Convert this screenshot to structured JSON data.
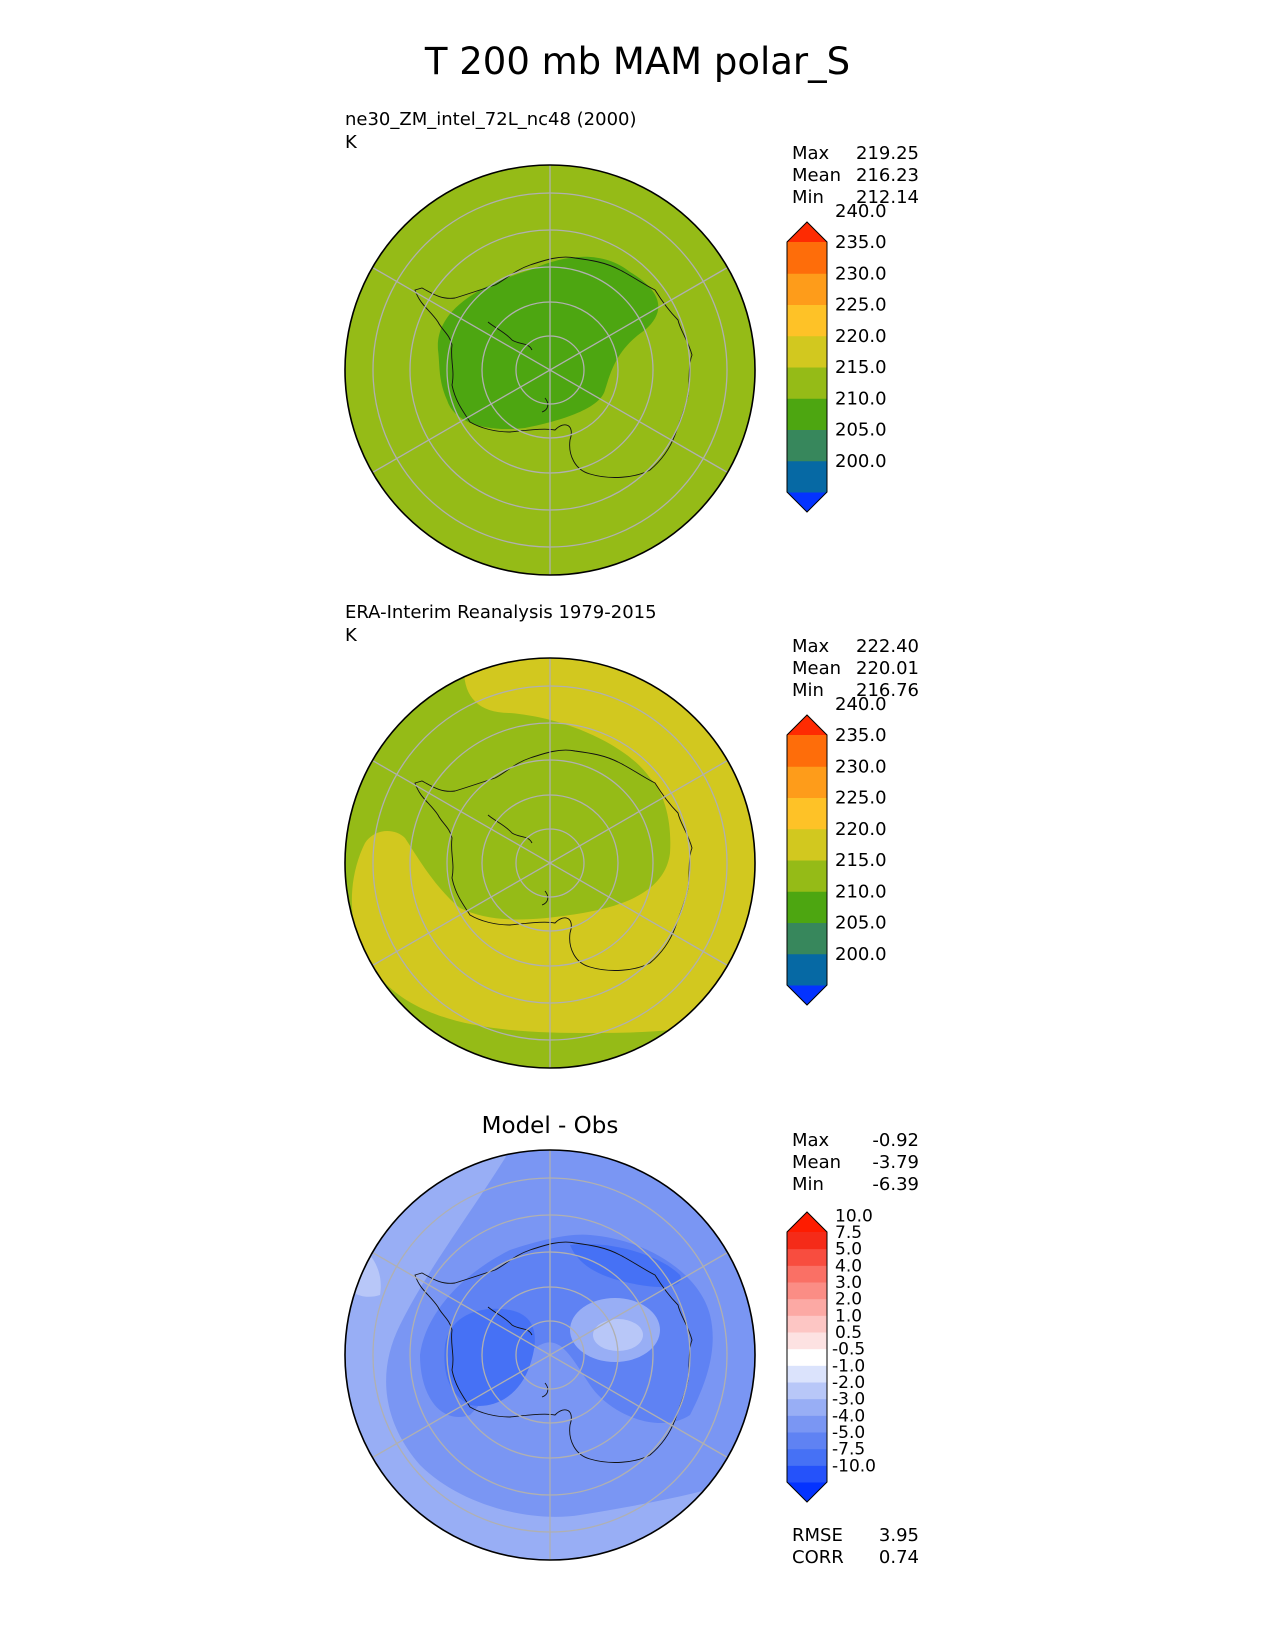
{
  "title": "T 200 mb MAM polar_S",
  "panels": [
    {
      "id": "model",
      "title_line1": "ne30_ZM_intel_72L_nc48 (2000)",
      "title_line2": "K",
      "stats": {
        "max_label": "Max",
        "max": "219.25",
        "mean_label": "Mean",
        "mean": "216.23",
        "min_label": "Min",
        "min": "212.14"
      },
      "colorbar": {
        "levels": [
          "200.0",
          "205.0",
          "210.0",
          "215.0",
          "220.0",
          "225.0",
          "230.0",
          "235.0",
          "240.0"
        ],
        "colors": [
          "#0433ff",
          "#0669a4",
          "#37875c",
          "#4da611",
          "#95bb17",
          "#d2c81f",
          "#fec227",
          "#fe9c1a",
          "#fe6d0a",
          "#fe2b02"
        ]
      }
    },
    {
      "id": "obs",
      "title_line1": "ERA-Interim Reanalysis 1979-2015",
      "title_line2": "K",
      "stats": {
        "max_label": "Max",
        "max": "222.40",
        "mean_label": "Mean",
        "mean": "220.01",
        "min_label": "Min",
        "min": "216.76"
      },
      "colorbar": {
        "levels": [
          "200.0",
          "205.0",
          "210.0",
          "215.0",
          "220.0",
          "225.0",
          "230.0",
          "235.0",
          "240.0"
        ],
        "colors": [
          "#0433ff",
          "#0669a4",
          "#37875c",
          "#4da611",
          "#95bb17",
          "#d2c81f",
          "#fec227",
          "#fe9c1a",
          "#fe6d0a",
          "#fe2b02"
        ]
      }
    },
    {
      "id": "diff",
      "title": "Model - Obs",
      "stats": {
        "max_label": "Max",
        "max": "-0.92",
        "mean_label": "Mean",
        "mean": "-3.79",
        "min_label": "Min",
        "min": "-6.39"
      },
      "colorbar": {
        "levels": [
          "-10.0",
          "-7.5",
          "-5.0",
          "-4.0",
          "-3.0",
          "-2.0",
          "-1.0",
          "-0.5",
          "0.5",
          "1.0",
          "2.0",
          "3.0",
          "4.0",
          "5.0",
          "7.5",
          "10.0"
        ],
        "colors": [
          "#0433ff",
          "#2552fa",
          "#4671f5",
          "#5f82f3",
          "#7a96f3",
          "#98aef5",
          "#b8c7f8",
          "#dbe3fc",
          "#ffffff",
          "#fde2e2",
          "#fdc6c4",
          "#fca9a4",
          "#fb8d85",
          "#fa7065",
          "#f84d3f",
          "#f52b18",
          "#fe1c00"
        ]
      },
      "rmse_label": "RMSE",
      "rmse": "3.95",
      "corr_label": "CORR",
      "corr": "0.74"
    }
  ],
  "chart_data": [
    {
      "type": "heatmap",
      "projection": "south polar stereographic",
      "panel": "ne30_ZM_intel_72L_nc48 (2000)",
      "units": "K",
      "max": 219.25,
      "mean": 216.23,
      "min": 212.14,
      "contour_levels": [
        200,
        205,
        210,
        215,
        220,
        225,
        230,
        235,
        240
      ],
      "regions": [
        {
          "band": "215-220",
          "location": "mid and outer latitudes (background)"
        },
        {
          "band": "210-215",
          "location": "over Antarctic interior, offset toward lon 0-90 side"
        }
      ]
    },
    {
      "type": "heatmap",
      "projection": "south polar stereographic",
      "panel": "ERA-Interim Reanalysis 1979-2015",
      "units": "K",
      "max": 222.4,
      "mean": 220.01,
      "min": 216.76,
      "contour_levels": [
        200,
        205,
        210,
        215,
        220,
        225,
        230,
        235,
        240
      ],
      "regions": [
        {
          "band": "215-220",
          "location": "polar cap and outer rim"
        },
        {
          "band": "220-225",
          "location": "crescent band around pole, widest over Pacific/Atlantic sectors"
        }
      ]
    },
    {
      "type": "heatmap",
      "projection": "south polar stereographic",
      "panel": "Model - Obs",
      "units": "K",
      "max": -0.92,
      "mean": -3.79,
      "min": -6.39,
      "rmse": 3.95,
      "corr": 0.74,
      "contour_levels": [
        -10,
        -7.5,
        -5,
        -4,
        -3,
        -2,
        -1,
        -0.5,
        0.5,
        1,
        2,
        3,
        4,
        5,
        7.5,
        10
      ],
      "regions": [
        {
          "band": "-5 to -4",
          "location": "East Antarctica and Indian Ocean sector"
        },
        {
          "band": "-4 to -3",
          "location": "large parts of mid latitudes"
        },
        {
          "band": "-2 to -1",
          "location": "small area near 70S, 60E and outer rim patches"
        }
      ]
    }
  ]
}
